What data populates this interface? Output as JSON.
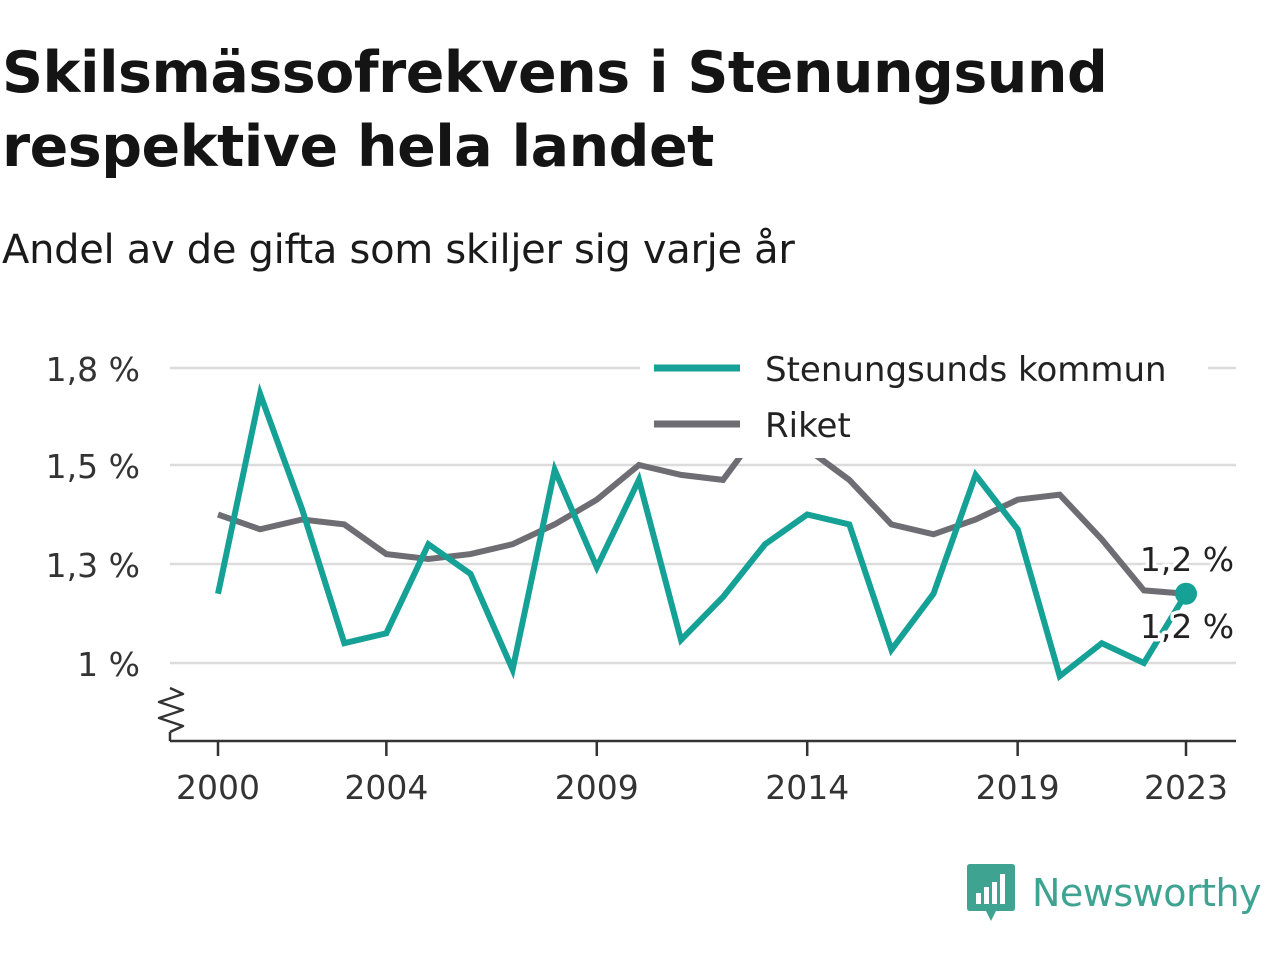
{
  "header": {
    "title": "Skilsmässofrekvens i Stenungsund respektive hela landet",
    "subtitle": "Andel av de gifta som skiljer sig varje år"
  },
  "brand": {
    "name": "Newsworthy",
    "icon": "newsworthy-logo-icon",
    "color": "#3fa392"
  },
  "colors": {
    "kommun": "#15a196",
    "riket": "#6e6d73",
    "grid": "#dcdcdc",
    "axis": "#333333"
  },
  "chart_data": {
    "type": "line",
    "x": [
      2000,
      2001,
      2002,
      2003,
      2004,
      2005,
      2006,
      2007,
      2008,
      2009,
      2010,
      2011,
      2012,
      2013,
      2014,
      2015,
      2016,
      2017,
      2018,
      2019,
      2020,
      2021,
      2022,
      2023
    ],
    "series": [
      {
        "name": "Stenungsunds kommun",
        "values": [
          1.21,
          1.72,
          1.41,
          1.06,
          1.09,
          1.34,
          1.27,
          0.98,
          1.49,
          1.29,
          1.47,
          1.07,
          1.2,
          1.34,
          1.4,
          1.38,
          1.04,
          1.21,
          1.48,
          1.37,
          0.96,
          1.06,
          1.0,
          1.21
        ]
      },
      {
        "name": "Riket",
        "values": [
          1.4,
          1.37,
          1.39,
          1.38,
          1.32,
          1.31,
          1.32,
          1.34,
          1.38,
          1.43,
          1.5,
          1.48,
          1.47,
          1.63,
          1.55,
          1.47,
          1.38,
          1.36,
          1.39,
          1.43,
          1.44,
          1.35,
          1.22,
          1.21
        ]
      }
    ],
    "y_ticks": [
      1.0,
      1.3,
      1.5,
      1.8
    ],
    "y_tick_labels": [
      "1 %",
      "1,3 %",
      "1,5 %",
      "1,8 %"
    ],
    "x_ticks": [
      2000,
      2004,
      2009,
      2014,
      2019,
      2023
    ],
    "x_tick_labels": [
      "2000",
      "2004",
      "2009",
      "2014",
      "2019",
      "2023"
    ],
    "end_labels": [
      "1,2 %",
      "1,2 %"
    ],
    "ylim": [
      0.85,
      1.85
    ],
    "axis_break": true,
    "grid": true,
    "legend_position": "top-right"
  }
}
